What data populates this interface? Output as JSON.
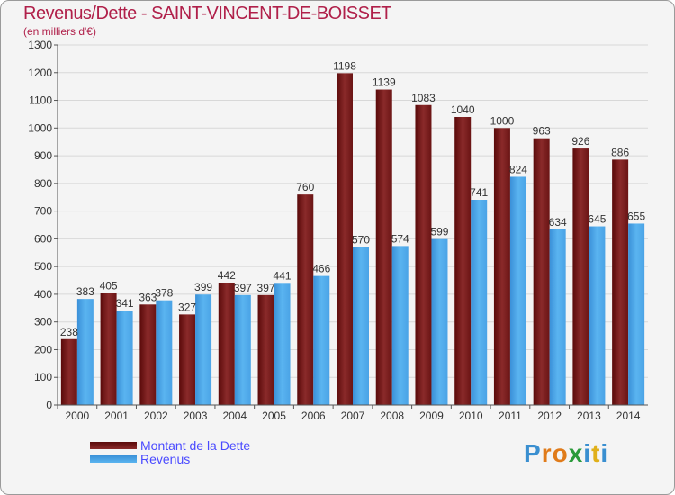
{
  "title": "Revenus/Dette - SAINT-VINCENT-DE-BOISSET",
  "subtitle": "(en milliers d'€)",
  "logo_text": "Proxiti",
  "chart_data": {
    "type": "bar",
    "categories": [
      "2000",
      "2001",
      "2002",
      "2003",
      "2004",
      "2005",
      "2006",
      "2007",
      "2008",
      "2009",
      "2010",
      "2011",
      "2012",
      "2013",
      "2014"
    ],
    "series": [
      {
        "name": "Montant de la Dette",
        "color": "#7a1c1c",
        "values": [
          238,
          405,
          363,
          327,
          442,
          397,
          760,
          1198,
          1139,
          1083,
          1040,
          1000,
          963,
          926,
          886
        ]
      },
      {
        "name": "Revenus",
        "color": "#4aa3e6",
        "values": [
          383,
          341,
          378,
          399,
          397,
          441,
          466,
          570,
          574,
          599,
          741,
          824,
          634,
          645,
          655
        ]
      }
    ],
    "ylim": [
      0,
      1300
    ],
    "yticks": [
      0,
      100,
      200,
      300,
      400,
      500,
      600,
      700,
      800,
      900,
      1000,
      1100,
      1200,
      1300
    ],
    "grid": true,
    "legend_position": "bottom-left"
  }
}
